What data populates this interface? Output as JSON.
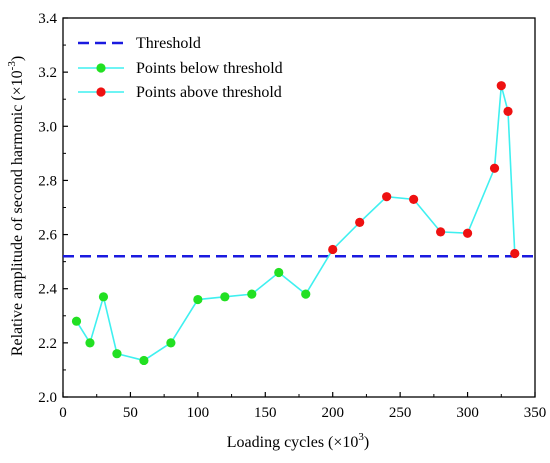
{
  "chart_data": {
    "type": "line",
    "xlabel_main": "Loading cycles (×10",
    "xlabel_sup": "3",
    "xlabel_end": ")",
    "ylabel_main": "Relative amplitude of second harmonic (×10",
    "ylabel_sup": "-3",
    "ylabel_end": ")",
    "xlim": [
      0,
      350
    ],
    "ylim": [
      2.0,
      3.4
    ],
    "xticks": [
      0,
      50,
      100,
      150,
      200,
      250,
      300,
      350
    ],
    "yticks": [
      2.0,
      2.2,
      2.4,
      2.6,
      2.8,
      3.0,
      3.2,
      3.4
    ],
    "threshold": {
      "name": "Threshold",
      "value": 2.52,
      "color": "#1a1adf"
    },
    "line_color": "#3ff0f0",
    "series": [
      {
        "name": "Points below threshold",
        "color": "#22e022",
        "points": [
          [
            10,
            2.28
          ],
          [
            20,
            2.2
          ],
          [
            30,
            2.37
          ],
          [
            40,
            2.16
          ],
          [
            60,
            2.135
          ],
          [
            80,
            2.2
          ],
          [
            100,
            2.36
          ],
          [
            120,
            2.37
          ],
          [
            140,
            2.38
          ],
          [
            160,
            2.46
          ],
          [
            180,
            2.38
          ]
        ]
      },
      {
        "name": "Points above threshold",
        "color": "#ee1111",
        "points": [
          [
            200,
            2.545
          ],
          [
            220,
            2.645
          ],
          [
            240,
            2.74
          ],
          [
            260,
            2.73
          ],
          [
            280,
            2.61
          ],
          [
            300,
            2.605
          ],
          [
            320,
            2.845
          ],
          [
            325,
            3.15
          ],
          [
            330,
            3.055
          ],
          [
            335,
            2.53
          ]
        ]
      }
    ],
    "legend_position": "top-left"
  }
}
